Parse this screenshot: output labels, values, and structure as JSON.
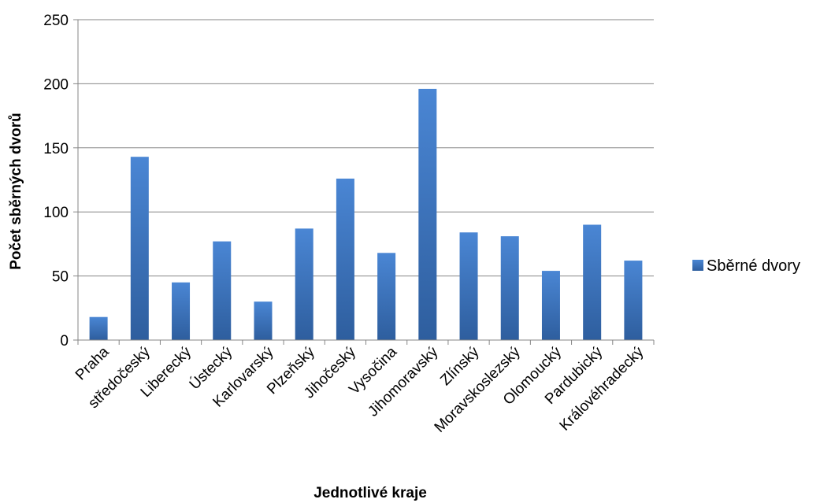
{
  "chart_data": {
    "type": "bar",
    "categories": [
      "Praha",
      "středočeský",
      "Liberecký",
      "Ústecký",
      "Karlovarský",
      "Plzeňský",
      "Jihočeský",
      "Vysočina",
      "Jihomoravský",
      "Zlínský",
      "Moravskoslezský",
      "Olomoucký",
      "Pardubický",
      "Královéhradecký"
    ],
    "series": [
      {
        "name": "Sběrné dvory",
        "values": [
          18,
          143,
          45,
          77,
          30,
          87,
          126,
          68,
          196,
          84,
          81,
          54,
          90,
          62
        ]
      }
    ],
    "title": "",
    "xlabel": "Jednotlivé kraje",
    "ylabel": "Počet sběrných dvorů",
    "ylim": [
      0,
      250
    ],
    "yticks": [
      0,
      50,
      100,
      150,
      200,
      250
    ],
    "grid": true,
    "legend_position": "right",
    "colors": {
      "bar_top": "#4a86d4",
      "bar_bottom": "#2e5e9e",
      "grid": "#868686",
      "axis": "#868686"
    }
  }
}
